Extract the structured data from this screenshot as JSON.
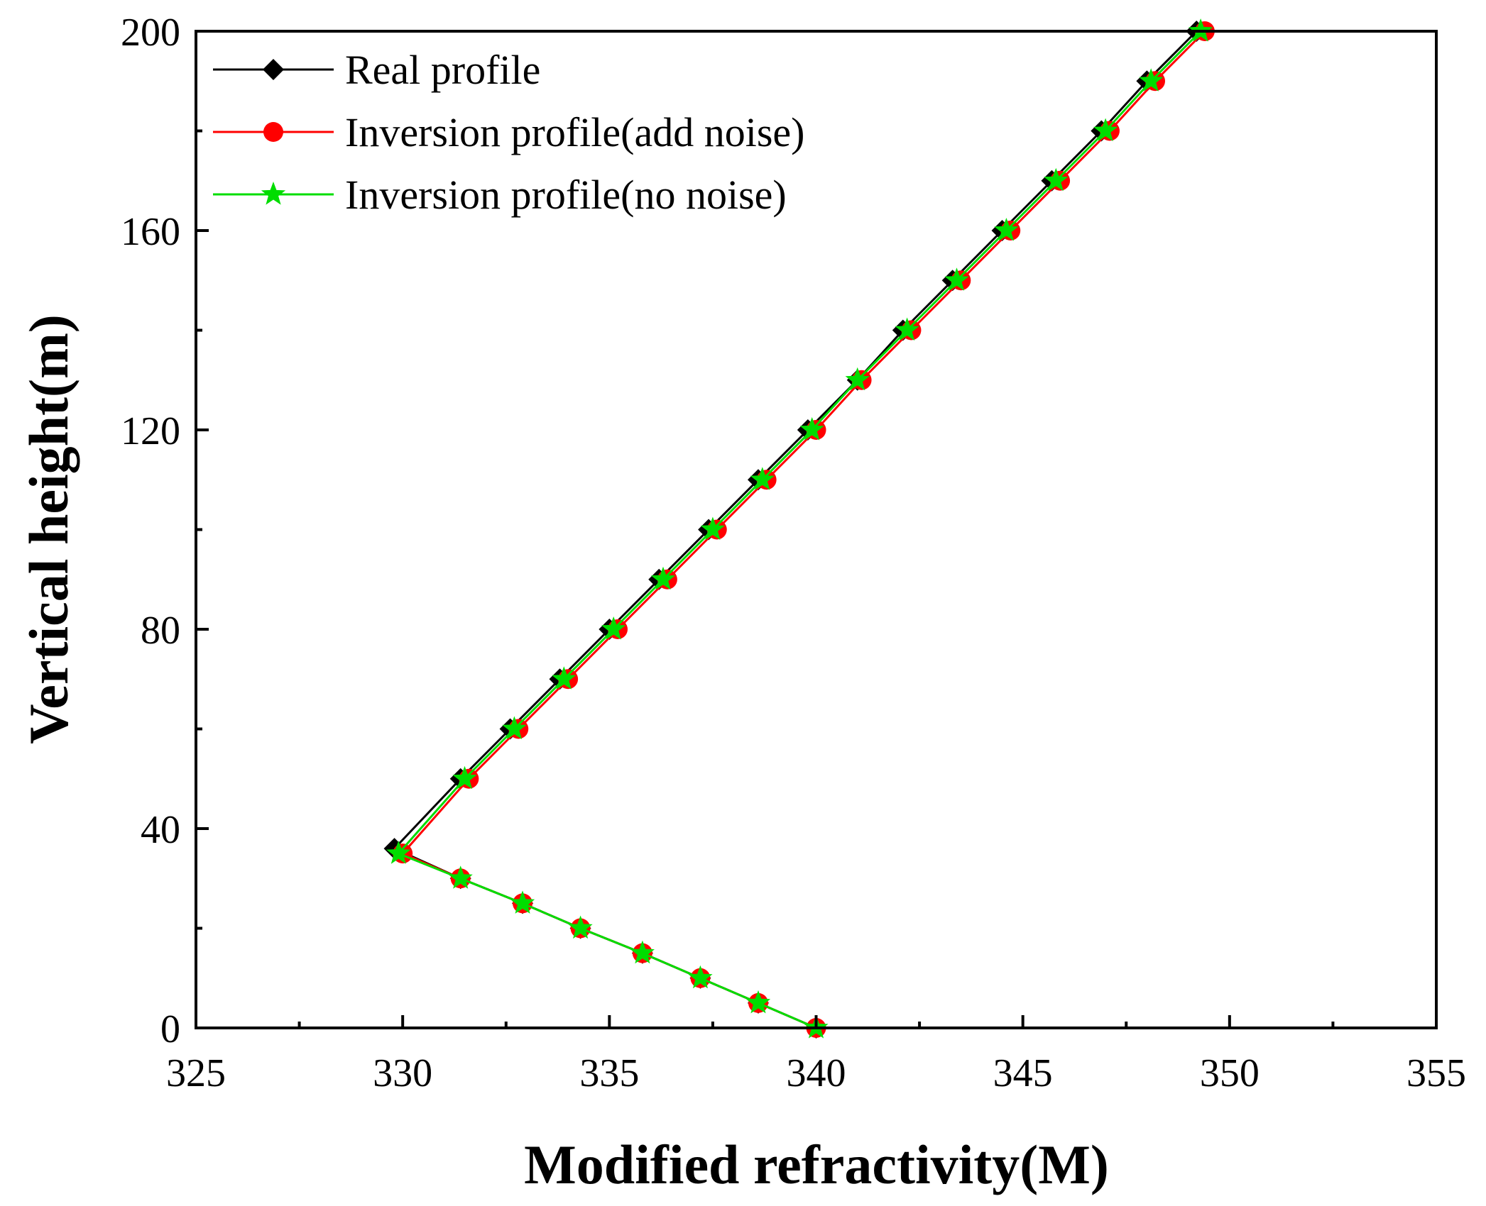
{
  "chart_data": {
    "type": "line",
    "title": "",
    "xlabel": "Modified refractivity(M)",
    "ylabel": "Vertical height(m)",
    "xlim": [
      325,
      355
    ],
    "ylim": [
      0,
      200
    ],
    "x_ticks": [
      325,
      330,
      335,
      340,
      345,
      350,
      355
    ],
    "y_ticks": [
      0,
      40,
      80,
      120,
      160,
      200
    ],
    "legend_position": "top-left",
    "series": [
      {
        "name": "Real profile",
        "color": "#000000",
        "marker": "diamond",
        "points": [
          [
            340.0,
            0
          ],
          [
            338.6,
            5
          ],
          [
            337.2,
            10
          ],
          [
            335.8,
            15
          ],
          [
            334.3,
            20
          ],
          [
            332.9,
            25
          ],
          [
            331.4,
            30
          ],
          [
            329.8,
            36
          ],
          [
            331.4,
            50
          ],
          [
            332.6,
            60
          ],
          [
            333.8,
            70
          ],
          [
            335.0,
            80
          ],
          [
            336.2,
            90
          ],
          [
            337.4,
            100
          ],
          [
            338.6,
            110
          ],
          [
            339.8,
            120
          ],
          [
            341.0,
            130
          ],
          [
            342.1,
            140
          ],
          [
            343.3,
            150
          ],
          [
            344.5,
            160
          ],
          [
            345.7,
            170
          ],
          [
            346.9,
            180
          ],
          [
            348.0,
            190
          ],
          [
            349.2,
            200
          ]
        ]
      },
      {
        "name": "Inversion profile(add noise)",
        "color": "#ff0000",
        "marker": "circle",
        "points": [
          [
            340.0,
            0
          ],
          [
            338.6,
            5
          ],
          [
            337.2,
            10
          ],
          [
            335.8,
            15
          ],
          [
            334.3,
            20
          ],
          [
            332.9,
            25
          ],
          [
            331.4,
            30
          ],
          [
            330.0,
            35
          ],
          [
            331.6,
            50
          ],
          [
            332.8,
            60
          ],
          [
            334.0,
            70
          ],
          [
            335.2,
            80
          ],
          [
            336.4,
            90
          ],
          [
            337.6,
            100
          ],
          [
            338.8,
            110
          ],
          [
            340.0,
            120
          ],
          [
            341.1,
            130
          ],
          [
            342.3,
            140
          ],
          [
            343.5,
            150
          ],
          [
            344.7,
            160
          ],
          [
            345.9,
            170
          ],
          [
            347.1,
            180
          ],
          [
            348.2,
            190
          ],
          [
            349.4,
            200
          ]
        ]
      },
      {
        "name": "Inversion profile(no noise)",
        "color": "#00dd00",
        "marker": "star",
        "points": [
          [
            340.0,
            0
          ],
          [
            338.6,
            5
          ],
          [
            337.2,
            10
          ],
          [
            335.8,
            15
          ],
          [
            334.3,
            20
          ],
          [
            332.9,
            25
          ],
          [
            331.4,
            30
          ],
          [
            329.9,
            35
          ],
          [
            331.5,
            50
          ],
          [
            332.7,
            60
          ],
          [
            333.9,
            70
          ],
          [
            335.1,
            80
          ],
          [
            336.3,
            90
          ],
          [
            337.5,
            100
          ],
          [
            338.7,
            110
          ],
          [
            339.9,
            120
          ],
          [
            341.0,
            130
          ],
          [
            342.2,
            140
          ],
          [
            343.4,
            150
          ],
          [
            344.6,
            160
          ],
          [
            345.8,
            170
          ],
          [
            347.0,
            180
          ],
          [
            348.1,
            190
          ],
          [
            349.3,
            200
          ]
        ]
      }
    ]
  }
}
